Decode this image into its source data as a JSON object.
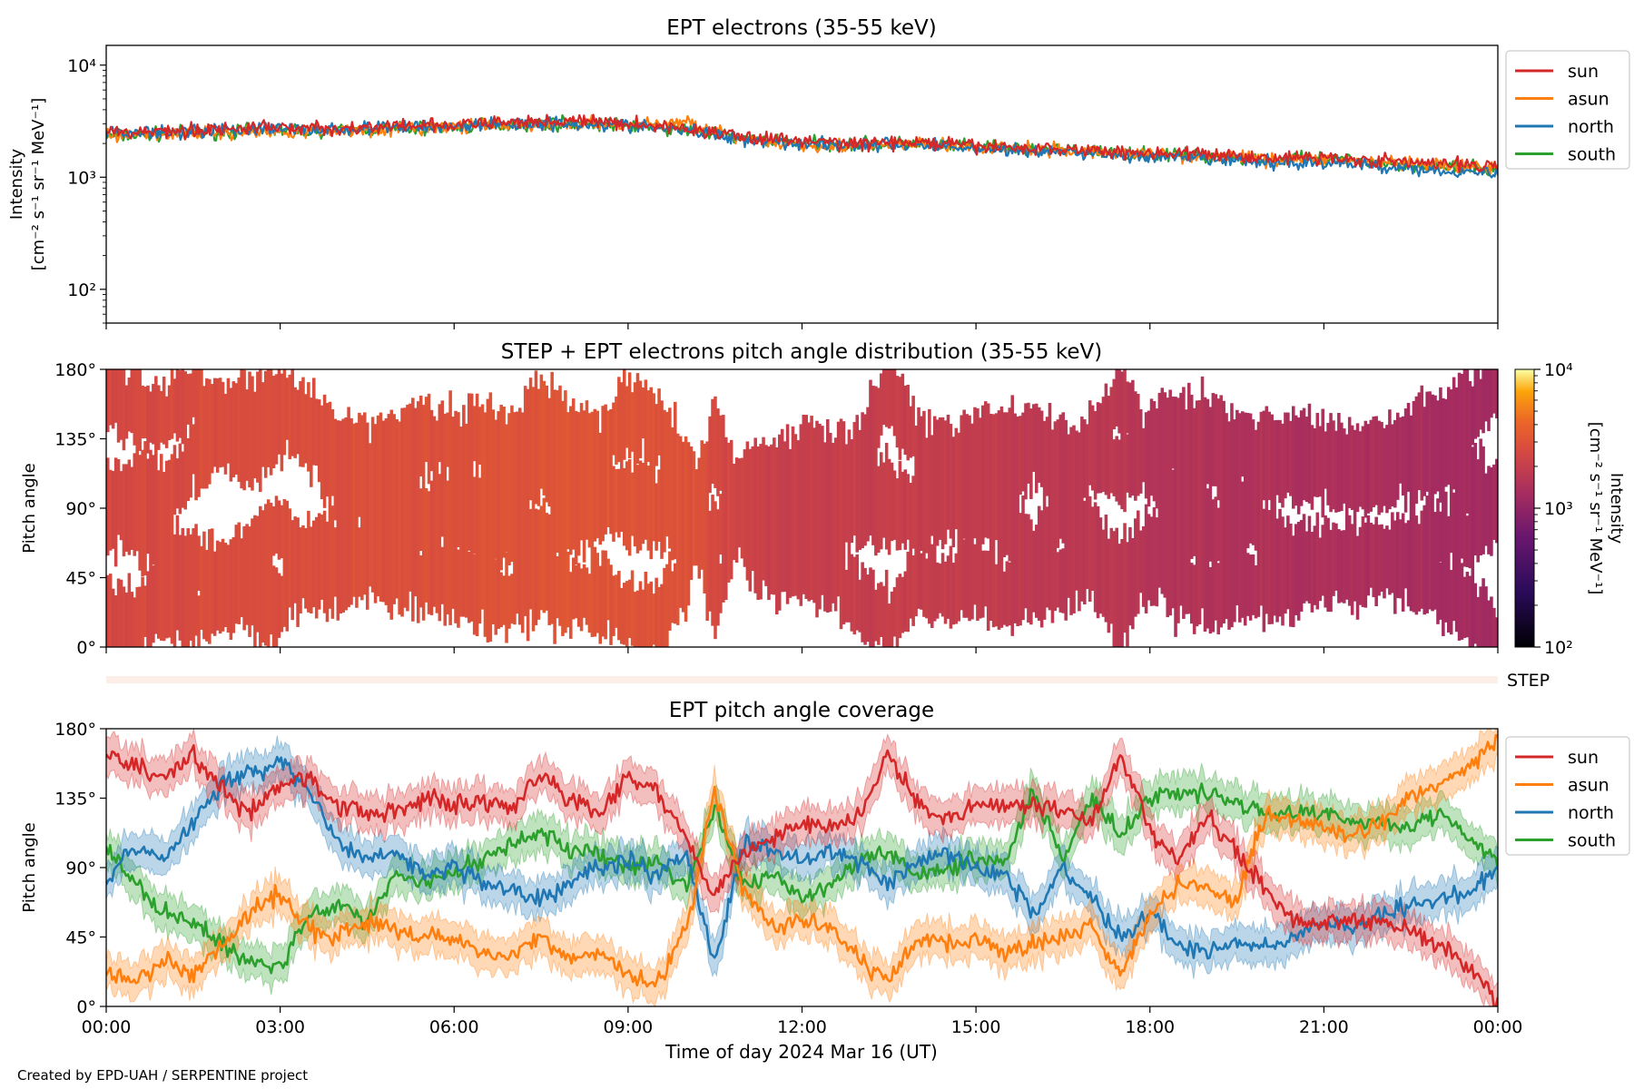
{
  "footer": "Created by EPD-UAH / SERPENTINE project",
  "chart_data": [
    {
      "id": "panel1",
      "type": "line",
      "title": "EPT electrons (35-55 keV)",
      "ylabel_lines": [
        "Intensity",
        "[cm⁻² s⁻¹ sr⁻¹ MeV⁻¹]"
      ],
      "yscale": "log",
      "ylim": [
        50,
        15000
      ],
      "yticks": [
        {
          "value": 100,
          "label": "10²"
        },
        {
          "value": 1000,
          "label": "10³"
        },
        {
          "value": 10000,
          "label": "10⁴"
        }
      ],
      "xlim": [
        0,
        24
      ],
      "x_tick_labels_shown": false,
      "legend_position": "outside-right-top",
      "series": [
        {
          "name": "sun",
          "color": "#d62728",
          "x": [
            0,
            1,
            2,
            3,
            4,
            5,
            6,
            7,
            8,
            9,
            10,
            11,
            12,
            13,
            14,
            15,
            16,
            17,
            18,
            19,
            20,
            21,
            22,
            23,
            24
          ],
          "y": [
            2500,
            2600,
            2700,
            2800,
            2700,
            2850,
            2900,
            3100,
            3200,
            3000,
            2700,
            2300,
            2100,
            2000,
            2050,
            1900,
            1800,
            1750,
            1650,
            1600,
            1500,
            1500,
            1400,
            1300,
            1300
          ]
        },
        {
          "name": "asun",
          "color": "#ff7f0e",
          "x": [
            0,
            1,
            2,
            3,
            4,
            5,
            6,
            7,
            8,
            9,
            10,
            11,
            12,
            13,
            14,
            15,
            16,
            17,
            18,
            19,
            20,
            21,
            22,
            23,
            24
          ],
          "y": [
            2400,
            2450,
            2500,
            2550,
            2600,
            2700,
            2800,
            2900,
            3000,
            2950,
            3100,
            2100,
            1950,
            1900,
            1950,
            1850,
            1750,
            1700,
            1600,
            1550,
            1450,
            1450,
            1350,
            1250,
            1200
          ]
        },
        {
          "name": "north",
          "color": "#1f77b4",
          "x": [
            0,
            1,
            2,
            3,
            4,
            5,
            6,
            7,
            8,
            9,
            10,
            11,
            12,
            13,
            14,
            15,
            16,
            17,
            18,
            19,
            20,
            21,
            22,
            23,
            24
          ],
          "y": [
            2500,
            2550,
            2650,
            2700,
            2650,
            2800,
            2850,
            3000,
            3050,
            2900,
            2600,
            2200,
            2000,
            1950,
            1950,
            1800,
            1700,
            1650,
            1500,
            1450,
            1350,
            1350,
            1250,
            1150,
            1100
          ]
        },
        {
          "name": "south",
          "color": "#2ca02c",
          "x": [
            0,
            1,
            2,
            3,
            4,
            5,
            6,
            7,
            8,
            9,
            10,
            11,
            12,
            13,
            14,
            15,
            16,
            17,
            18,
            19,
            20,
            21,
            22,
            23,
            24
          ],
          "y": [
            2300,
            2450,
            2550,
            2650,
            2600,
            2700,
            2800,
            2950,
            3050,
            2900,
            2650,
            2200,
            2050,
            1950,
            2000,
            1850,
            1750,
            1700,
            1600,
            1550,
            1450,
            1450,
            1350,
            1250,
            1150
          ]
        }
      ]
    },
    {
      "id": "panel2",
      "type": "heatmap",
      "title": "STEP + EPT electrons pitch angle distribution (35-55 keV)",
      "ylabel": "Pitch angle",
      "ylim": [
        0,
        180
      ],
      "yticks": [
        {
          "value": 0,
          "label": "0°"
        },
        {
          "value": 45,
          "label": "45°"
        },
        {
          "value": 90,
          "label": "90°"
        },
        {
          "value": 135,
          "label": "135°"
        },
        {
          "value": 180,
          "label": "180°"
        }
      ],
      "xlim": [
        0,
        24
      ],
      "x_tick_labels_shown": false,
      "colormap": "plasma",
      "colorbar": {
        "label_lines": [
          "Intensity",
          "[cm⁻² s⁻¹ sr⁻¹ MeV⁻¹]"
        ],
        "scale": "log",
        "range": [
          100,
          10000
        ],
        "ticks": [
          {
            "value": 100,
            "label": "10²"
          },
          {
            "value": 1000,
            "label": "10³"
          },
          {
            "value": 10000,
            "label": "10⁴"
          }
        ]
      },
      "intensity_profile": {
        "x": [
          0,
          2,
          4,
          6,
          8,
          10,
          10.5,
          11,
          12,
          14,
          16,
          17.5,
          18,
          20,
          22,
          24
        ],
        "intensity": [
          2500,
          2700,
          2800,
          2900,
          3100,
          3000,
          2600,
          2200,
          2000,
          2000,
          1800,
          1700,
          1550,
          1450,
          1350,
          1250
        ]
      }
    },
    {
      "id": "step_strip",
      "type": "heatmap",
      "label": "STEP",
      "color": "#fdeee8"
    },
    {
      "id": "panel3",
      "type": "line",
      "title": "EPT pitch angle coverage",
      "ylabel": "Pitch angle",
      "xlabel": "Time of day 2024 Mar 16 (UT)",
      "ylim": [
        0,
        180
      ],
      "yticks": [
        {
          "value": 0,
          "label": "0°"
        },
        {
          "value": 45,
          "label": "45°"
        },
        {
          "value": 90,
          "label": "90°"
        },
        {
          "value": 135,
          "label": "135°"
        },
        {
          "value": 180,
          "label": "180°"
        }
      ],
      "xlim": [
        0,
        24
      ],
      "xticks": [
        {
          "value": 0,
          "label": "00:00"
        },
        {
          "value": 3,
          "label": "03:00"
        },
        {
          "value": 6,
          "label": "06:00"
        },
        {
          "value": 9,
          "label": "09:00"
        },
        {
          "value": 12,
          "label": "12:00"
        },
        {
          "value": 15,
          "label": "15:00"
        },
        {
          "value": 18,
          "label": "18:00"
        },
        {
          "value": 21,
          "label": "21:00"
        },
        {
          "value": 24,
          "label": "00:00"
        }
      ],
      "band_halfwidth_deg": 12,
      "legend_position": "outside-right-top",
      "series": [
        {
          "name": "sun",
          "color": "#d62728",
          "x": [
            0,
            0.5,
            1,
            1.5,
            2,
            2.5,
            3,
            3.5,
            4,
            4.5,
            5,
            5.5,
            6,
            6.5,
            7,
            7.5,
            8,
            8.5,
            9,
            9.5,
            10,
            10.5,
            11,
            11.5,
            12,
            12.5,
            13,
            13.5,
            14,
            14.5,
            15,
            15.5,
            16,
            16.5,
            17,
            17.5,
            18,
            18.5,
            19,
            19.5,
            20,
            20.5,
            21,
            21.5,
            22,
            22.5,
            23,
            23.5,
            24
          ],
          "y": [
            165,
            155,
            150,
            165,
            140,
            125,
            145,
            150,
            130,
            125,
            125,
            135,
            130,
            135,
            130,
            150,
            135,
            125,
            150,
            140,
            110,
            70,
            100,
            110,
            120,
            115,
            125,
            165,
            130,
            120,
            130,
            130,
            130,
            125,
            120,
            165,
            115,
            95,
            125,
            100,
            75,
            55,
            55,
            55,
            55,
            50,
            40,
            25,
            5
          ]
        },
        {
          "name": "asun",
          "color": "#ff7f0e",
          "x": [
            0,
            0.5,
            1,
            1.5,
            2,
            2.5,
            3,
            3.5,
            4,
            4.5,
            5,
            5.5,
            6,
            6.5,
            7,
            7.5,
            8,
            8.5,
            9,
            9.5,
            10,
            10.5,
            11,
            11.5,
            12,
            12.5,
            13,
            13.5,
            14,
            14.5,
            15,
            15.5,
            16,
            16.5,
            17,
            17.5,
            18,
            18.5,
            19,
            19.5,
            20,
            20.5,
            21,
            21.5,
            22,
            22.5,
            23,
            23.5,
            24
          ],
          "y": [
            20,
            15,
            30,
            20,
            40,
            60,
            75,
            50,
            45,
            55,
            50,
            45,
            45,
            35,
            35,
            45,
            30,
            35,
            20,
            15,
            50,
            140,
            75,
            50,
            55,
            50,
            30,
            15,
            45,
            40,
            45,
            35,
            40,
            45,
            55,
            20,
            60,
            80,
            75,
            70,
            125,
            120,
            115,
            110,
            120,
            135,
            145,
            155,
            175
          ]
        },
        {
          "name": "north",
          "color": "#1f77b4",
          "x": [
            0,
            0.5,
            1,
            1.5,
            2,
            2.5,
            3,
            3.5,
            4,
            4.5,
            5,
            5.5,
            6,
            6.5,
            7,
            7.5,
            8,
            8.5,
            9,
            9.5,
            10,
            10.5,
            11,
            11.5,
            12,
            12.5,
            13,
            13.5,
            14,
            14.5,
            15,
            15.5,
            16,
            16.5,
            17,
            17.5,
            18,
            18.5,
            19,
            19.5,
            20,
            20.5,
            21,
            21.5,
            22,
            22.5,
            23,
            23.5,
            24
          ],
          "y": [
            80,
            105,
            95,
            120,
            145,
            150,
            160,
            140,
            105,
            95,
            100,
            85,
            90,
            80,
            75,
            70,
            80,
            90,
            95,
            85,
            100,
            30,
            105,
            100,
            95,
            100,
            95,
            80,
            95,
            100,
            90,
            85,
            60,
            90,
            70,
            45,
            60,
            40,
            35,
            40,
            40,
            45,
            55,
            50,
            60,
            65,
            70,
            75,
            90
          ]
        },
        {
          "name": "south",
          "color": "#2ca02c",
          "x": [
            0,
            0.5,
            1,
            1.5,
            2,
            2.5,
            3,
            3.5,
            4,
            4.5,
            5,
            5.5,
            6,
            6.5,
            7,
            7.5,
            8,
            8.5,
            9,
            9.5,
            10,
            10.5,
            11,
            11.5,
            12,
            12.5,
            13,
            13.5,
            14,
            14.5,
            15,
            15.5,
            16,
            16.5,
            17,
            17.5,
            18,
            18.5,
            19,
            19.5,
            20,
            20.5,
            21,
            21.5,
            22,
            22.5,
            23,
            23.5,
            24
          ],
          "y": [
            100,
            80,
            60,
            55,
            40,
            30,
            25,
            60,
            65,
            55,
            85,
            80,
            85,
            95,
            105,
            115,
            100,
            100,
            90,
            95,
            75,
            130,
            80,
            85,
            70,
            80,
            95,
            100,
            85,
            90,
            95,
            95,
            140,
            95,
            135,
            110,
            135,
            140,
            140,
            130,
            125,
            125,
            125,
            120,
            120,
            115,
            125,
            110,
            95
          ]
        }
      ]
    }
  ]
}
